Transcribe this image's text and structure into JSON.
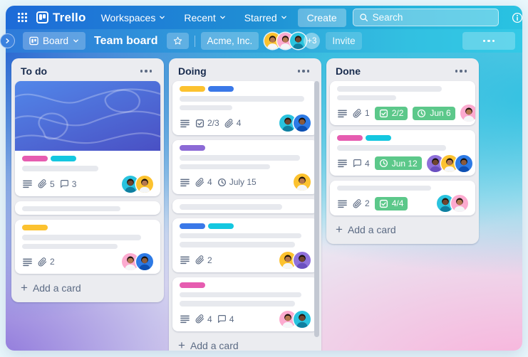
{
  "topnav": {
    "logo_text": "Trello",
    "menus": [
      {
        "label": "Workspaces"
      },
      {
        "label": "Recent"
      },
      {
        "label": "Starred"
      }
    ],
    "create_label": "Create",
    "search_placeholder": "Search",
    "user_avatar": "yellow"
  },
  "boardbar": {
    "view_label": "Board",
    "title": "Team board",
    "org_label": "Acme, Inc.",
    "members": [
      "yellow",
      "pink",
      "teal"
    ],
    "more_members": "+3",
    "invite_label": "Invite"
  },
  "board": {
    "add_card_label": "Add a card",
    "lists": [
      {
        "title": "To do",
        "scrollbar": false,
        "cards": [
          {
            "cover": true,
            "labels": [
              "pink",
              "cyan"
            ],
            "lines": [
              58
            ],
            "badges": [
              {
                "icon": "description-icon"
              },
              {
                "icon": "attachment-icon",
                "text": "5"
              },
              {
                "icon": "comment-icon",
                "text": "3"
              }
            ],
            "avatars": [
              "teal",
              "yellow"
            ]
          },
          {
            "lines": [
              75
            ]
          },
          {
            "labels": [
              "yellow"
            ],
            "lines": [
              91,
              73
            ],
            "badges": [
              {
                "icon": "description-icon"
              },
              {
                "icon": "attachment-icon",
                "text": "2"
              }
            ],
            "avatars": [
              "pink",
              "blue"
            ]
          }
        ]
      },
      {
        "title": "Doing",
        "scrollbar": true,
        "cards": [
          {
            "labels": [
              "yellow",
              "blue"
            ],
            "lines": [
              95,
              40
            ],
            "badges": [
              {
                "icon": "description-icon"
              },
              {
                "icon": "checklist-icon",
                "text": "2/3"
              },
              {
                "icon": "attachment-icon",
                "text": "4"
              }
            ],
            "avatars": [
              "teal",
              "blue"
            ]
          },
          {
            "labels": [
              "purple"
            ],
            "lines": [
              92,
              69
            ],
            "badges": [
              {
                "icon": "description-icon"
              },
              {
                "icon": "attachment-icon",
                "text": "4"
              },
              {
                "icon": "clock-icon",
                "text": "July 15"
              }
            ],
            "avatars": [
              "yellow"
            ]
          },
          {
            "lines": [
              78
            ]
          },
          {
            "labels": [
              "blue",
              "cyan"
            ],
            "lines": [
              93,
              88
            ],
            "badges": [
              {
                "icon": "description-icon"
              },
              {
                "icon": "attachment-icon",
                "text": "2"
              }
            ],
            "avatars": [
              "yellow",
              "purple"
            ]
          },
          {
            "labels": [
              "pink"
            ],
            "lines": [
              93,
              88
            ],
            "badges": [
              {
                "icon": "description-icon"
              },
              {
                "icon": "attachment-icon",
                "text": "4"
              },
              {
                "icon": "comment-icon",
                "text": "4"
              }
            ],
            "avatars": [
              "pink",
              "teal"
            ]
          }
        ]
      },
      {
        "title": "Done",
        "scrollbar": false,
        "cards": [
          {
            "lines": [
              80,
              45
            ],
            "badges": [
              {
                "icon": "description-icon"
              },
              {
                "icon": "attachment-icon",
                "text": "1"
              },
              {
                "icon": "checklist-icon",
                "text": "2/2",
                "green": true
              },
              {
                "icon": "clock-icon",
                "text": "Jun 6",
                "green": true
              }
            ],
            "avatars": [
              "pink"
            ]
          },
          {
            "labels": [
              "pink",
              "cyan"
            ],
            "lines": [
              83
            ],
            "badges": [
              {
                "icon": "description-icon"
              },
              {
                "icon": "comment-icon",
                "text": "4"
              },
              {
                "icon": "clock-icon",
                "text": "Jun 12",
                "green": true
              }
            ],
            "avatars": [
              "purple",
              "yellow",
              "blue"
            ]
          },
          {
            "lines": [
              72
            ],
            "badges": [
              {
                "icon": "description-icon"
              },
              {
                "icon": "attachment-icon",
                "text": "2"
              },
              {
                "icon": "checklist-icon",
                "text": "4/4",
                "green": true
              }
            ],
            "avatars": [
              "teal",
              "pink"
            ]
          }
        ]
      }
    ]
  },
  "icons": {
    "app_switcher": "grid-icon",
    "logo": "trello-logo-icon",
    "menu_chevron": "chevron-down-icon",
    "search": "search-icon",
    "info": "info-icon",
    "notifications": "bell-icon",
    "sidebar_toggle": "chevron-right-icon",
    "board_view": "board-icon",
    "star": "star-icon",
    "list_menu": "ellipsis-icon",
    "card_description": "description-icon",
    "card_attachment": "attachment-icon",
    "card_comment": "comment-icon",
    "card_checklist": "checklist-icon",
    "card_due_date": "clock-icon",
    "add_card": "plus-icon"
  },
  "colors": {
    "theme": {
      "frame_bg": "#e9f7fc",
      "nav_left": "#1d6bd8",
      "nav_right": "#29c3e2",
      "bar_left": "#2e7ad9",
      "bar_right": "#33c9e6",
      "canvas_blue": "#2d6bd2",
      "canvas_cyan": "#2cb9dd",
      "canvas_purple": "#8a70da",
      "canvas_pink": "#f9b0da",
      "list_bg": "#ebecf0",
      "cover_from": "#5287e9",
      "cover_to": "#4a50c4",
      "badge_green": "#5cc88a"
    },
    "labels": {
      "pink": "#e65cb0",
      "cyan": "#14c7e0",
      "yellow": "#fcc22f",
      "blue": "#3a78e8",
      "purple": "#8c6ad6"
    },
    "avatars": {
      "teal": {
        "bg": "#2ac3de",
        "skin": "#70452f",
        "shirt": "#0f7fa0",
        "hair": "#26150d"
      },
      "yellow": {
        "bg": "#fcc22f",
        "skin": "#b5774e",
        "shirt": "#f4f6f8",
        "hair": "#1e140d"
      },
      "pink": {
        "bg": "#fcaacf",
        "skin": "#b5774e",
        "shirt": "#f4f6f8",
        "hair": "#1e140d"
      },
      "blue": {
        "bg": "#2d7ae5",
        "skin": "#8a5a3c",
        "shirt": "#0d4fb2",
        "hair": "#14100d"
      },
      "purple": {
        "bg": "#8f70da",
        "skin": "#70452f",
        "shirt": "#6a4fc0",
        "hair": "#14100d"
      }
    }
  }
}
